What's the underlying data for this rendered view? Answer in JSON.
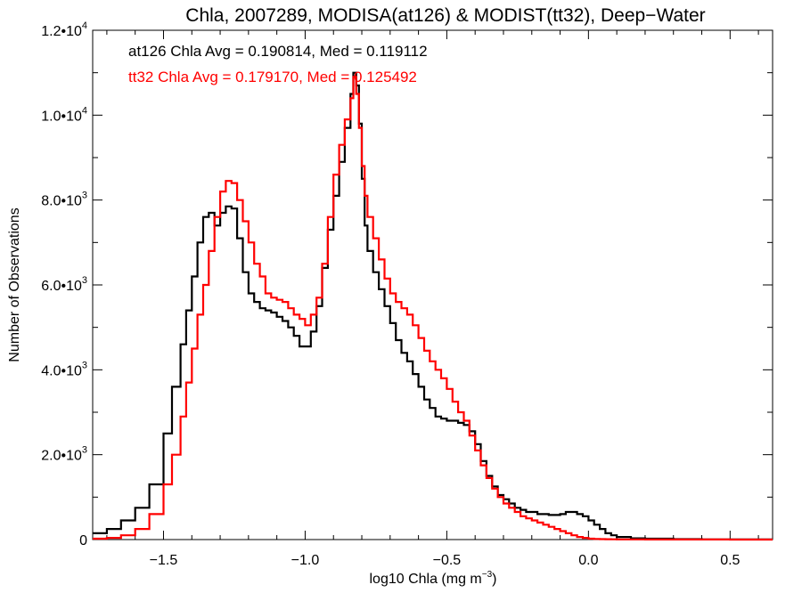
{
  "chart_data": {
    "type": "line",
    "title": "Chla, 2007289, MODISA(at126) & MODIST(tt32), Deep−Water",
    "xlabel_main": "log10 Chla (mg m",
    "xlabel_sup": "−3",
    "xlabel_end": ")",
    "ylabel": "Number of Observations",
    "xlim": [
      -1.75,
      0.65
    ],
    "ylim": [
      0,
      12000
    ],
    "x_ticks": [
      {
        "value": -1.5,
        "label": "−1.5"
      },
      {
        "value": -1.0,
        "label": "−1.0"
      },
      {
        "value": -0.5,
        "label": "−0.5"
      },
      {
        "value": 0.0,
        "label": "0.0"
      },
      {
        "value": 0.5,
        "label": "0.5"
      }
    ],
    "y_ticks": [
      {
        "value": 0,
        "mant": "0",
        "sup": ""
      },
      {
        "value": 2000,
        "mant": "2.0•10",
        "sup": "3"
      },
      {
        "value": 4000,
        "mant": "4.0•10",
        "sup": "3"
      },
      {
        "value": 6000,
        "mant": "6.0•10",
        "sup": "3"
      },
      {
        "value": 8000,
        "mant": "8.0•10",
        "sup": "3"
      },
      {
        "value": 10000,
        "mant": "1.0•10",
        "sup": "4"
      },
      {
        "value": 12000,
        "mant": "1.2•10",
        "sup": "4"
      }
    ],
    "annotations": [
      {
        "text": "at126 Chla Avg = 0.190814, Med = 0.119112",
        "color": "#000000"
      },
      {
        "text": "tt32 Chla Avg = 0.179170, Med = 0.125492",
        "color": "#ff0000"
      }
    ],
    "series": [
      {
        "color": "#000000",
        "x": [
          -1.75,
          -1.7,
          -1.65,
          -1.6,
          -1.55,
          -1.5,
          -1.47,
          -1.44,
          -1.42,
          -1.4,
          -1.38,
          -1.36,
          -1.34,
          -1.32,
          -1.3,
          -1.28,
          -1.26,
          -1.24,
          -1.22,
          -1.2,
          -1.18,
          -1.16,
          -1.14,
          -1.12,
          -1.1,
          -1.08,
          -1.06,
          -1.04,
          -1.02,
          -1.0,
          -0.98,
          -0.96,
          -0.94,
          -0.92,
          -0.9,
          -0.88,
          -0.86,
          -0.84,
          -0.83,
          -0.82,
          -0.81,
          -0.8,
          -0.79,
          -0.78,
          -0.76,
          -0.74,
          -0.72,
          -0.7,
          -0.68,
          -0.66,
          -0.64,
          -0.62,
          -0.6,
          -0.58,
          -0.56,
          -0.54,
          -0.52,
          -0.5,
          -0.48,
          -0.46,
          -0.44,
          -0.42,
          -0.4,
          -0.38,
          -0.36,
          -0.34,
          -0.32,
          -0.3,
          -0.28,
          -0.26,
          -0.24,
          -0.22,
          -0.2,
          -0.18,
          -0.16,
          -0.14,
          -0.12,
          -0.1,
          -0.08,
          -0.06,
          -0.04,
          -0.02,
          0.0,
          0.02,
          0.04,
          0.06,
          0.08,
          0.1,
          0.15,
          0.2,
          0.3,
          0.4,
          0.5,
          0.6,
          0.65
        ],
        "y": [
          150,
          250,
          450,
          750,
          1300,
          2500,
          3600,
          4600,
          5400,
          6200,
          7000,
          7600,
          7700,
          7400,
          7700,
          7850,
          7800,
          7100,
          6300,
          5800,
          5600,
          5450,
          5400,
          5350,
          5250,
          5150,
          5000,
          4800,
          4550,
          4550,
          4900,
          5500,
          6400,
          7300,
          8100,
          8900,
          9700,
          10500,
          11000,
          10700,
          9800,
          8500,
          7400,
          6800,
          6300,
          5900,
          5500,
          5100,
          4700,
          4400,
          4200,
          3900,
          3600,
          3300,
          3100,
          2900,
          2850,
          2800,
          2800,
          2750,
          2700,
          2550,
          2250,
          1850,
          1500,
          1250,
          1050,
          950,
          850,
          750,
          700,
          650,
          650,
          600,
          600,
          580,
          580,
          600,
          650,
          650,
          600,
          550,
          450,
          350,
          250,
          150,
          100,
          60,
          30,
          20,
          10,
          5,
          3,
          2,
          2
        ]
      },
      {
        "color": "#ff0000",
        "x": [
          -1.75,
          -1.7,
          -1.65,
          -1.6,
          -1.55,
          -1.5,
          -1.47,
          -1.44,
          -1.42,
          -1.4,
          -1.38,
          -1.36,
          -1.34,
          -1.32,
          -1.3,
          -1.28,
          -1.26,
          -1.24,
          -1.22,
          -1.2,
          -1.18,
          -1.16,
          -1.14,
          -1.12,
          -1.1,
          -1.08,
          -1.06,
          -1.04,
          -1.02,
          -1.0,
          -0.98,
          -0.96,
          -0.94,
          -0.92,
          -0.9,
          -0.88,
          -0.86,
          -0.84,
          -0.83,
          -0.82,
          -0.81,
          -0.8,
          -0.79,
          -0.78,
          -0.76,
          -0.74,
          -0.72,
          -0.7,
          -0.68,
          -0.66,
          -0.64,
          -0.62,
          -0.6,
          -0.58,
          -0.56,
          -0.54,
          -0.52,
          -0.5,
          -0.48,
          -0.46,
          -0.44,
          -0.42,
          -0.4,
          -0.38,
          -0.36,
          -0.34,
          -0.32,
          -0.3,
          -0.28,
          -0.26,
          -0.24,
          -0.22,
          -0.2,
          -0.18,
          -0.16,
          -0.14,
          -0.12,
          -0.1,
          -0.08,
          -0.06,
          -0.04,
          -0.02,
          0.0,
          0.02,
          0.04,
          0.06,
          0.08,
          0.1,
          0.15,
          0.2,
          0.3,
          0.4,
          0.5,
          0.6,
          0.65
        ],
        "y": [
          20,
          40,
          100,
          250,
          600,
          1300,
          2000,
          2900,
          3700,
          4500,
          5300,
          6000,
          6800,
          7600,
          8200,
          8450,
          8400,
          8000,
          7500,
          7000,
          6500,
          6200,
          5800,
          5700,
          5650,
          5600,
          5450,
          5300,
          5200,
          5050,
          5300,
          5700,
          6500,
          7600,
          8600,
          9300,
          9900,
          10400,
          10900,
          10500,
          9700,
          8800,
          8100,
          7600,
          7100,
          6600,
          6150,
          5800,
          5600,
          5450,
          5300,
          5050,
          4750,
          4450,
          4200,
          4000,
          3800,
          3550,
          3250,
          3000,
          2800,
          2450,
          2100,
          1750,
          1450,
          1200,
          1000,
          850,
          750,
          650,
          550,
          500,
          450,
          400,
          350,
          300,
          250,
          200,
          150,
          100,
          60,
          40,
          20,
          15,
          10,
          8,
          6,
          5,
          4,
          3,
          2,
          2,
          1,
          1,
          1
        ]
      }
    ]
  }
}
